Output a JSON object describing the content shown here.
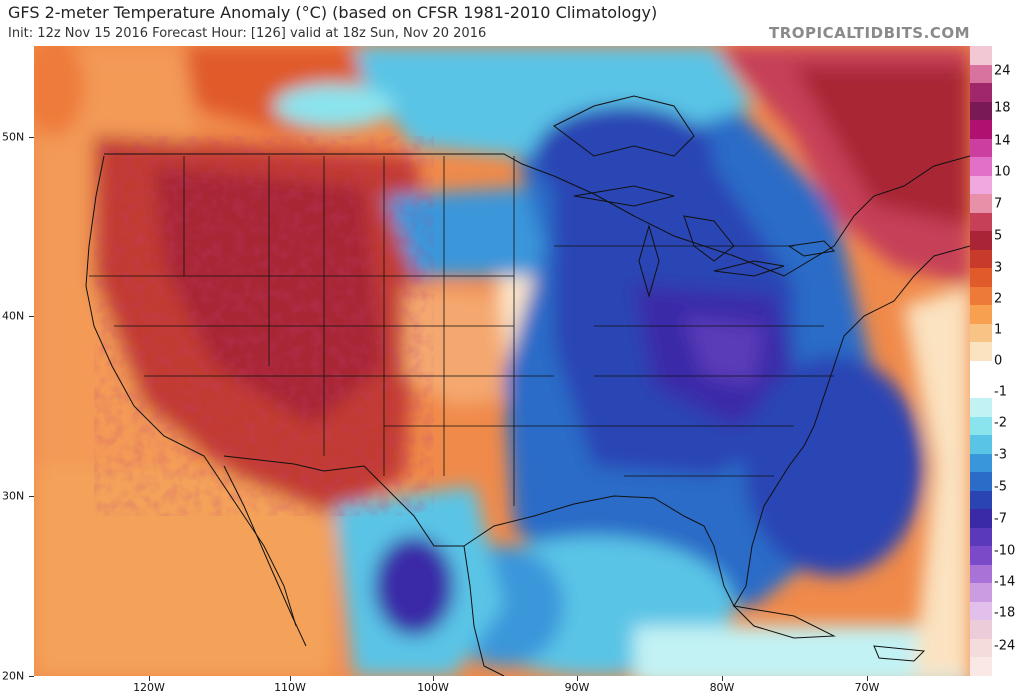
{
  "header": {
    "title": "GFS 2-meter Temperature Anomaly (°C) (based on CFSR 1981-2010 Climatology)",
    "subtitle": "Init: 12z Nov 15 2016   Forecast Hour: [126]   valid at 18z Sun, Nov 20 2016",
    "brand": "TROPICALTIDBITS.COM"
  },
  "map": {
    "latitude_labels": [
      "50N",
      "40N",
      "30N",
      "20N"
    ],
    "longitude_labels": [
      "120W",
      "110W",
      "100W",
      "90W",
      "80W",
      "70W"
    ]
  },
  "colorbar": {
    "labels": [
      "24",
      "18",
      "14",
      "10",
      "7",
      "5",
      "3",
      "2",
      "1",
      "0",
      "-1",
      "-2",
      "-3",
      "-5",
      "-7",
      "-10",
      "-14",
      "-18",
      "-24"
    ],
    "colors": [
      "#f2c8d4",
      "#d8729e",
      "#a0286a",
      "#7a1a55",
      "#b01070",
      "#cc3fa0",
      "#e070c8",
      "#f0a8e0",
      "#e890a8",
      "#c64058",
      "#a92536",
      "#c83a2a",
      "#e05a2c",
      "#ee7a3a",
      "#f6a050",
      "#f8c486",
      "#fbe2c0",
      "#ffffff",
      "#ffffff",
      "#c2f2f4",
      "#8ae4ee",
      "#5ac4e6",
      "#3a96da",
      "#2a6cc8",
      "#2a44b4",
      "#3a2aa8",
      "#5a3ab8",
      "#7a4ac8",
      "#a872d6",
      "#cc9ce2",
      "#e2c0ec",
      "#ecccd8",
      "#f4dcdc",
      "#fae8e4"
    ]
  }
}
